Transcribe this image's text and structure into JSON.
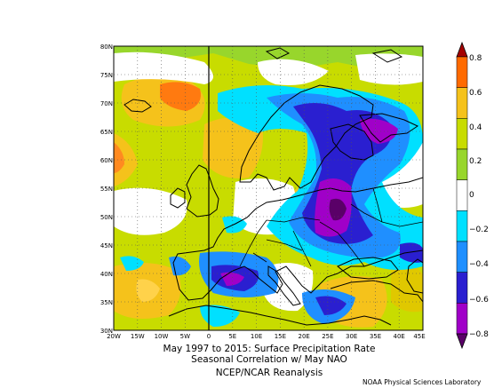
{
  "figure": {
    "title_line1": "May 1997 to 2015: Surface Precipitation Rate",
    "title_line2": "Seasonal Correlation w/ May NAO",
    "source": "NCEP/NCAR Reanalysis",
    "credit": "NOAA Physical Sciences Laboratory"
  },
  "map": {
    "lon_range": [
      -20,
      45
    ],
    "lat_range": [
      30,
      80
    ],
    "lat_ticks": [
      "80N",
      "75N",
      "70N",
      "65N",
      "60N",
      "55N",
      "50N",
      "45N",
      "40N",
      "35N",
      "30N"
    ],
    "lon_ticks": [
      "20W",
      "15W",
      "10W",
      "5W",
      "0",
      "5E",
      "10E",
      "15E",
      "20E",
      "25E",
      "30E",
      "35E",
      "40E",
      "45E"
    ]
  },
  "colorbar": {
    "levels": [
      -0.8,
      -0.6,
      -0.4,
      -0.2,
      0,
      0.2,
      0.4,
      0.6,
      0.8
    ],
    "labels": [
      "0.8",
      "0.6",
      "0.4",
      "0.2",
      "0",
      "−0.2",
      "−0.4",
      "−0.6",
      "−0.8"
    ],
    "colors": {
      "pos_08": "#a40000",
      "pos_06": "#ff6a00",
      "pos_04": "#f5c21b",
      "pos_02": "#c8dc00",
      "pos_01": "#98d62c",
      "neutral": "#ffffff",
      "neg_01": "#00e0ff",
      "neg_02": "#1f8fff",
      "neg_04": "#2a1fd0",
      "neg_06": "#a000c8",
      "neg_08": "#5a0068"
    }
  }
}
